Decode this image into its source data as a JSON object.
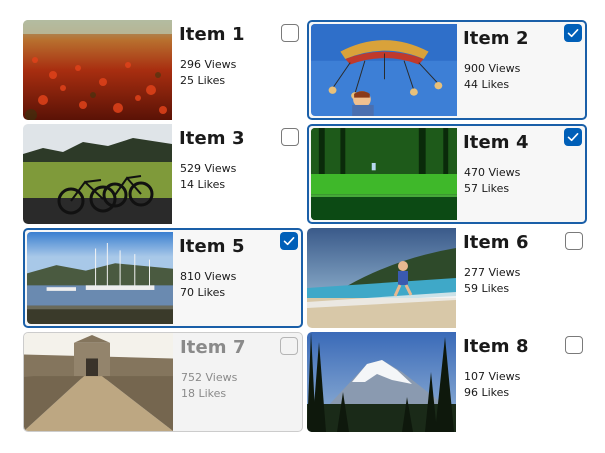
{
  "items": [
    {
      "title": "Item 1",
      "views": "296 Views",
      "likes": "25 Likes",
      "checked": false,
      "photo": "red-leaf-path"
    },
    {
      "title": "Item 2",
      "views": "900 Views",
      "likes": "44 Likes",
      "checked": true,
      "photo": "swing-carousel"
    },
    {
      "title": "Item 3",
      "views": "529 Views",
      "likes": "14 Likes",
      "checked": false,
      "photo": "bicycles-field"
    },
    {
      "title": "Item 4",
      "views": "470 Views",
      "likes": "57 Likes",
      "checked": true,
      "photo": "green-forest"
    },
    {
      "title": "Item 5",
      "views": "810 Views",
      "likes": "70 Likes",
      "checked": true,
      "photo": "harbor-boats"
    },
    {
      "title": "Item 6",
      "views": "277 Views",
      "likes": "59 Likes",
      "checked": false,
      "photo": "beach-child"
    },
    {
      "title": "Item 7",
      "views": "752 Views",
      "likes": "18 Likes",
      "checked": false,
      "disabled": true,
      "photo": "fort-gate"
    },
    {
      "title": "Item 8",
      "views": "107 Views",
      "likes": "96 Likes",
      "checked": false,
      "photo": "snowy-mountain"
    }
  ],
  "colors": {
    "accent": "#005fb8",
    "selected_border": "#1a5fa8",
    "disabled_text": "#8a8a8a"
  }
}
